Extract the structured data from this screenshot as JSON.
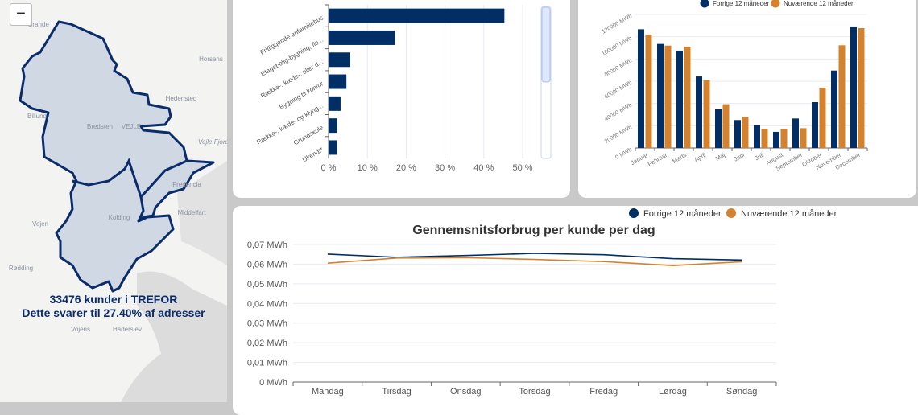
{
  "map": {
    "zoom_out_label": "−",
    "places": [
      "Brande",
      "Horsens",
      "Hedensted",
      "Billund",
      "Bredsten",
      "VEJLE",
      "Vejle Fjord",
      "Fredericia",
      "Middelfart",
      "Kolding",
      "Vejen",
      "Rødding",
      "Vojens",
      "Haderslev"
    ],
    "customers_text": "33476 kunder i TREFOR",
    "share_text": "Dette svarer til 27.40% af adresser"
  },
  "colors": {
    "navy": "#002e65",
    "orange": "#d5822e"
  },
  "chart_data": [
    {
      "type": "bar",
      "orientation": "horizontal",
      "categories": [
        "Fritliggende enfamiliehus",
        "Etagebolig-bygning, fle...",
        "Række-, kæde-, eller d...",
        "Bygning til kontor",
        "Række-, kæde- og klyng...",
        "Grundskole",
        "Ukendt*"
      ],
      "values": [
        45.3,
        17.1,
        5.6,
        4.6,
        3.1,
        2.2,
        2.2
      ],
      "xticks": [
        "0 %",
        "10 %",
        "20 %",
        "30 %",
        "40 %",
        "50 %"
      ],
      "xlim": [
        0,
        50
      ]
    },
    {
      "type": "bar",
      "categories": [
        "Januar",
        "Februar",
        "Marts",
        "April",
        "Maj",
        "Juni",
        "Juli",
        "August",
        "September",
        "Oktober",
        "November",
        "December"
      ],
      "series": [
        {
          "name": "Forrige 12 måneder",
          "values": [
            106700,
            93500,
            87500,
            64300,
            34900,
            25100,
            20700,
            14500,
            26500,
            41200,
            69600,
            109200
          ]
        },
        {
          "name": "Nuværende 12 måneder",
          "values": [
            101900,
            92000,
            91100,
            61000,
            39300,
            28000,
            17300,
            17300,
            17800,
            54200,
            92300,
            107700
          ]
        }
      ],
      "yticks": [
        "0 MWh",
        "20000 MWh",
        "40000 MWh",
        "60000 MWh",
        "80000 MWh",
        "100000 MWh",
        "120000 MWh"
      ],
      "ylim": [
        0,
        120000
      ],
      "legend": "top"
    },
    {
      "type": "line",
      "title": "Gennemsnitsforbrug per kunde per dag",
      "categories": [
        "Mandag",
        "Tirsdag",
        "Onsdag",
        "Torsdag",
        "Fredag",
        "Lørdag",
        "Søndag"
      ],
      "series": [
        {
          "name": "Forrige 12 måneder",
          "values": [
            0.0651,
            0.0635,
            0.0644,
            0.0655,
            0.0648,
            0.0628,
            0.0621
          ]
        },
        {
          "name": "Nuværende 12 måneder",
          "values": [
            0.0605,
            0.0631,
            0.0633,
            0.0624,
            0.0613,
            0.0593,
            0.0612
          ]
        }
      ],
      "yticks": [
        "0 MWh",
        "0,01 MWh",
        "0,02 MWh",
        "0,03 MWh",
        "0,04 MWh",
        "0,05 MWh",
        "0,06 MWh",
        "0,07 MWh"
      ],
      "ylim": [
        0,
        0.07
      ],
      "legend": "top-right"
    }
  ]
}
